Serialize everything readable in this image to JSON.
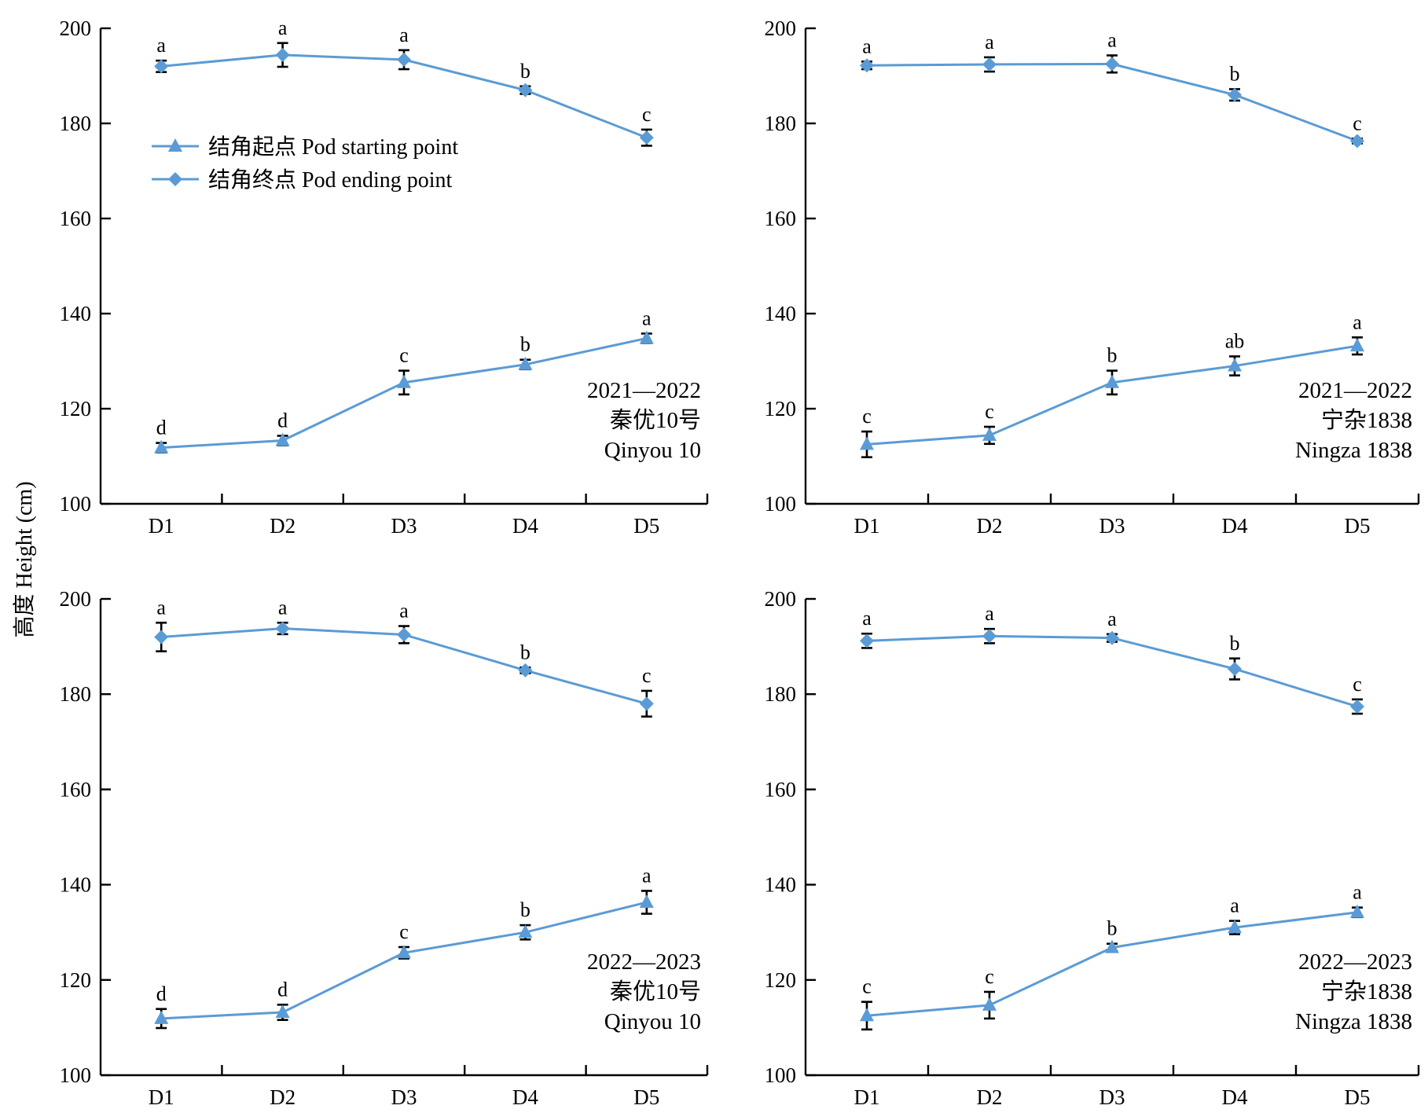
{
  "figure": {
    "ylabel": "高度 Height (cm)",
    "line_color": "#5B9BD5"
  },
  "legend": {
    "items": [
      {
        "label": "结角起点 Pod starting point",
        "marker": "triangle"
      },
      {
        "label": "结角终点 Pod ending point",
        "marker": "diamond"
      }
    ]
  },
  "chart_data": [
    {
      "type": "line",
      "categories": [
        "D1",
        "D2",
        "D3",
        "D4",
        "D5"
      ],
      "ylim": [
        100,
        200
      ],
      "yticks": [
        100,
        120,
        140,
        160,
        180,
        200
      ],
      "annotation": [
        "2021—2022",
        "秦优10号",
        "Qinyou 10"
      ],
      "series": [
        {
          "name": "结角起点 Pod starting point",
          "marker": "triangle",
          "values": [
            111.8,
            113.3,
            125.5,
            129.3,
            134.8
          ],
          "errors": [
            1.0,
            1.0,
            2.5,
            1.0,
            1.0
          ],
          "letters": [
            "d",
            "d",
            "c",
            "b",
            "a"
          ]
        },
        {
          "name": "结角终点 Pod ending point",
          "marker": "diamond",
          "values": [
            192.0,
            194.4,
            193.4,
            187.0,
            177.0
          ],
          "errors": [
            1.2,
            2.5,
            2.0,
            0.8,
            1.7
          ],
          "letters": [
            "a",
            "a",
            "a",
            "b",
            "c"
          ]
        }
      ]
    },
    {
      "type": "line",
      "categories": [
        "D1",
        "D2",
        "D3",
        "D4",
        "D5"
      ],
      "ylim": [
        100,
        200
      ],
      "yticks": [
        100,
        120,
        140,
        160,
        180,
        200
      ],
      "annotation": [
        "2021—2022",
        "宁杂1838",
        "Ningza 1838"
      ],
      "series": [
        {
          "name": "结角起点 Pod starting point",
          "marker": "triangle",
          "values": [
            112.5,
            114.4,
            125.5,
            129.0,
            133.2
          ],
          "errors": [
            2.7,
            1.8,
            2.5,
            2.0,
            1.8
          ],
          "letters": [
            "c",
            "c",
            "b",
            "ab",
            "a"
          ]
        },
        {
          "name": "结角终点 Pod ending point",
          "marker": "diamond",
          "values": [
            192.2,
            192.4,
            192.5,
            186.0,
            176.3
          ],
          "errors": [
            0.8,
            1.5,
            1.8,
            1.2,
            0.5
          ],
          "letters": [
            "a",
            "a",
            "a",
            "b",
            "c"
          ]
        }
      ]
    },
    {
      "type": "line",
      "categories": [
        "D1",
        "D2",
        "D3",
        "D4",
        "D5"
      ],
      "ylim": [
        100,
        200
      ],
      "yticks": [
        100,
        120,
        140,
        160,
        180,
        200
      ],
      "annotation": [
        "2022—2023",
        "秦优10号",
        "Qinyou 10"
      ],
      "series": [
        {
          "name": "结角起点 Pod starting point",
          "marker": "triangle",
          "values": [
            111.9,
            113.2,
            125.7,
            130.0,
            136.3
          ],
          "errors": [
            2.0,
            1.6,
            1.2,
            1.5,
            2.4
          ],
          "letters": [
            "d",
            "d",
            "c",
            "b",
            "a"
          ]
        },
        {
          "name": "结角终点 Pod ending point",
          "marker": "diamond",
          "values": [
            192.0,
            193.8,
            192.5,
            185.0,
            178.0
          ],
          "errors": [
            3.0,
            1.2,
            1.8,
            0.6,
            2.7
          ],
          "letters": [
            "a",
            "a",
            "a",
            "b",
            "c"
          ]
        }
      ]
    },
    {
      "type": "line",
      "categories": [
        "D1",
        "D2",
        "D3",
        "D4",
        "D5"
      ],
      "ylim": [
        100,
        200
      ],
      "yticks": [
        100,
        120,
        140,
        160,
        180,
        200
      ],
      "annotation": [
        "2022—2023",
        "宁杂1838",
        "Ningza 1838"
      ],
      "series": [
        {
          "name": "结角起点 Pod starting point",
          "marker": "triangle",
          "values": [
            112.5,
            114.7,
            126.8,
            131.0,
            134.2
          ],
          "errors": [
            2.9,
            2.8,
            0.8,
            1.4,
            1.0
          ],
          "letters": [
            "c",
            "c",
            "b",
            "a",
            "a"
          ]
        },
        {
          "name": "结角终点 Pod ending point",
          "marker": "diamond",
          "values": [
            191.2,
            192.2,
            191.8,
            185.3,
            177.4
          ],
          "errors": [
            1.5,
            1.5,
            0.8,
            2.2,
            1.5
          ],
          "letters": [
            "a",
            "a",
            "a",
            "b",
            "c"
          ]
        }
      ]
    }
  ]
}
